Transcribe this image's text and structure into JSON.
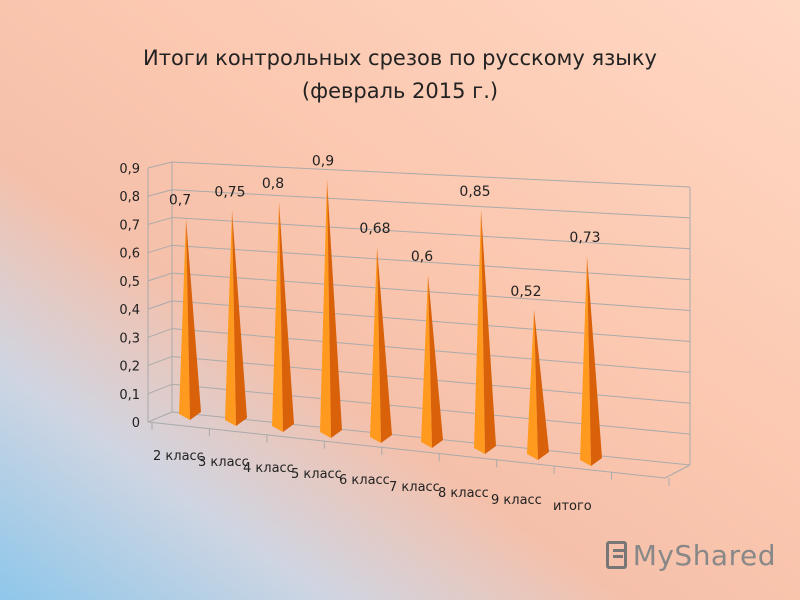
{
  "chart_data": {
    "type": "bar",
    "style": "3d-cone",
    "title_line1": "Итоги контрольных срезов по русскому языку",
    "title_line2": "(февраль 2015 г.)",
    "categories": [
      "2 класс",
      "3 класс",
      "4 класс",
      "5 класс",
      "6 класс",
      "7 класс",
      "8 класс",
      "9 класс",
      "итого"
    ],
    "values": [
      0.7,
      0.75,
      0.8,
      0.9,
      0.68,
      0.6,
      0.85,
      0.52,
      0.73
    ],
    "value_labels": [
      "0,7",
      "0,75",
      "0,8",
      "0,9",
      "0,68",
      "0,6",
      "0,85",
      "0,52",
      "0,73"
    ],
    "y_ticks": [
      "0",
      "0,1",
      "0,2",
      "0,3",
      "0,4",
      "0,5",
      "0,6",
      "0,7",
      "0,8",
      "0,9"
    ],
    "ylim": [
      0,
      0.9
    ],
    "grid": true,
    "legend": "none",
    "colors": {
      "cone_light": "#ff9a1e",
      "cone_dark": "#d9610a",
      "grid": "#aaaaaa"
    }
  },
  "watermark": {
    "text": "MyShared"
  }
}
